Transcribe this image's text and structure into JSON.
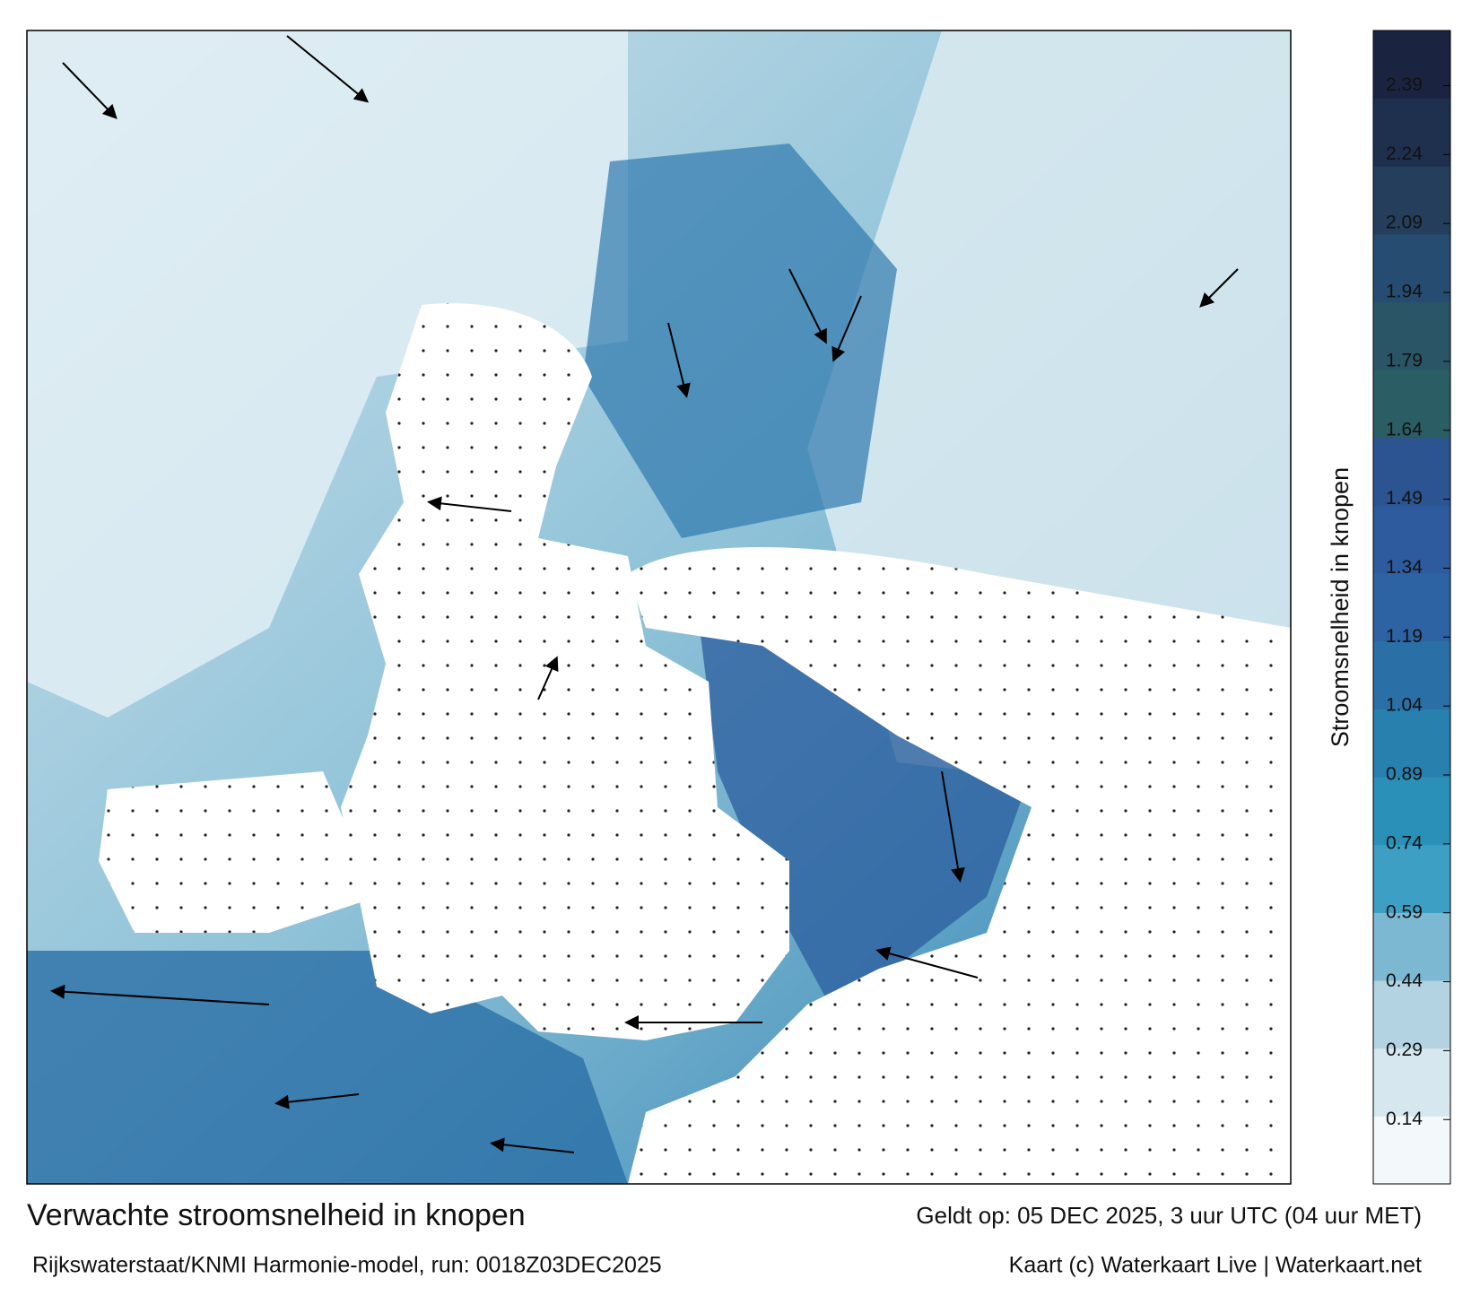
{
  "map": {
    "title": "Verwachte stroomsnelheid in knopen",
    "subtitle": "Rijkswaterstaat/KNMI Harmonie-model, run: 0018Z03DEC2025",
    "valid_time": "Geldt op: 05 DEC 2025, 3 uur UTC (04 uur MET)",
    "credit": "Kaart (c) Waterkaart Live | Waterkaart.net",
    "colorbar": {
      "label": "Stroomsnelheid in knopen",
      "lim": [
        0,
        2.51
      ],
      "ticks": [
        0.14,
        0.29,
        0.44,
        0.59,
        0.74,
        0.89,
        1.04,
        1.19,
        1.34,
        1.49,
        1.64,
        1.79,
        1.94,
        2.09,
        2.24,
        2.39
      ],
      "colors": [
        "#f3f8fa",
        "#d6e7ef",
        "#b3d3e2",
        "#7cb8d2",
        "#3d9fc4",
        "#2a90b8",
        "#2780ae",
        "#2a70a6",
        "#2d63a3",
        "#2e5b9e",
        "#2c5490",
        "#2a5d64",
        "#2a5566",
        "#264c72",
        "#243e5c",
        "#1f2f4e",
        "#1a2440"
      ]
    }
  }
}
